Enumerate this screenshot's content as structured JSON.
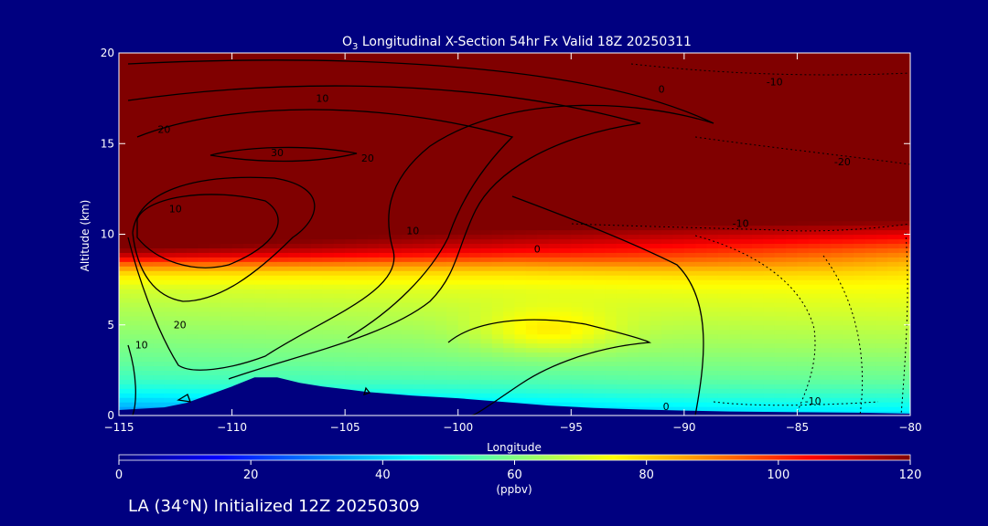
{
  "chart_data": {
    "type": "heatmap",
    "title": {
      "prefix": "O",
      "subscript": "3",
      "rest": " Longitudinal X-Section 54hr  Fx Valid 18Z 20250311"
    },
    "xlabel": "Longitude",
    "ylabel": "Altitude (km)",
    "xlim": [
      -115,
      -80
    ],
    "ylim": [
      0,
      20
    ],
    "x_ticks": [
      -115,
      -110,
      -105,
      -100,
      -95,
      -90,
      -85,
      -80
    ],
    "x_tick_labels": [
      "−115",
      "−110",
      "−105",
      "−100",
      "−95",
      "−90",
      "−85",
      "−80"
    ],
    "y_ticks": [
      0,
      5,
      10,
      15,
      20
    ],
    "y_tick_labels": [
      "0",
      "5",
      "10",
      "15",
      "20"
    ],
    "colorbar": {
      "label": "(ppbv)",
      "min": 0,
      "max": 120,
      "ticks": [
        0,
        20,
        40,
        60,
        80,
        100,
        120
      ],
      "tick_labels": [
        "0",
        "20",
        "40",
        "60",
        "80",
        "100",
        "120"
      ],
      "colors": [
        "#00007f",
        "#0000ff",
        "#0080ff",
        "#00ffff",
        "#80ff80",
        "#ffff00",
        "#ff8000",
        "#ff0000",
        "#800000"
      ]
    },
    "ozone_profile": {
      "altitude": [
        0,
        0.5,
        1,
        1.5,
        2,
        3,
        4,
        5,
        6,
        7,
        7.8,
        8.3,
        8.8,
        9.3,
        9.8,
        10.4,
        11,
        20
      ],
      "ppbv_west": [
        28,
        36,
        42,
        48,
        52,
        57,
        60,
        63,
        66,
        70,
        78,
        90,
        110,
        122,
        126,
        128,
        130,
        135
      ],
      "ppbv_east": [
        40,
        46,
        50,
        54,
        57,
        61,
        65,
        68,
        71,
        74,
        78,
        82,
        88,
        95,
        104,
        114,
        124,
        132
      ]
    },
    "terrain": {
      "longitude": [
        -115,
        -113,
        -112,
        -110,
        -109,
        -108,
        -107,
        -106,
        -104,
        -102,
        -100,
        -98,
        -96,
        -94,
        -92,
        -90,
        -88,
        -85,
        -82,
        -80
      ],
      "altitude_km": [
        0.3,
        0.45,
        0.7,
        1.6,
        2.1,
        2.1,
        1.8,
        1.6,
        1.3,
        1.1,
        0.95,
        0.75,
        0.55,
        0.42,
        0.33,
        0.27,
        0.22,
        0.18,
        0.15,
        0.1
      ]
    },
    "contour_labels": [
      {
        "text": "10",
        "lon": -106.0,
        "alt": 17.3
      },
      {
        "text": "0",
        "lon": -91.0,
        "alt": 17.8
      },
      {
        "text": "20",
        "lon": -113.0,
        "alt": 15.6
      },
      {
        "text": "30",
        "lon": -108.0,
        "alt": 14.3
      },
      {
        "text": "20",
        "lon": -104.0,
        "alt": 14.0
      },
      {
        "text": "10",
        "lon": -112.5,
        "alt": 11.2
      },
      {
        "text": "10",
        "lon": -102.0,
        "alt": 10.0
      },
      {
        "text": "0",
        "lon": -96.5,
        "alt": 9.0
      },
      {
        "text": "-10",
        "lon": -86.0,
        "alt": 18.2
      },
      {
        "text": "-20",
        "lon": -83.0,
        "alt": 13.8
      },
      {
        "text": "-10",
        "lon": -87.5,
        "alt": 10.4
      },
      {
        "text": "20",
        "lon": -112.3,
        "alt": 4.8
      },
      {
        "text": "10",
        "lon": -114.0,
        "alt": 3.7
      },
      {
        "text": "0",
        "lon": -90.8,
        "alt": 0.3
      },
      {
        "text": "-10",
        "lon": -84.3,
        "alt": 0.6
      }
    ]
  },
  "footer": "LA (34°N) Initialized 12Z 20250309"
}
